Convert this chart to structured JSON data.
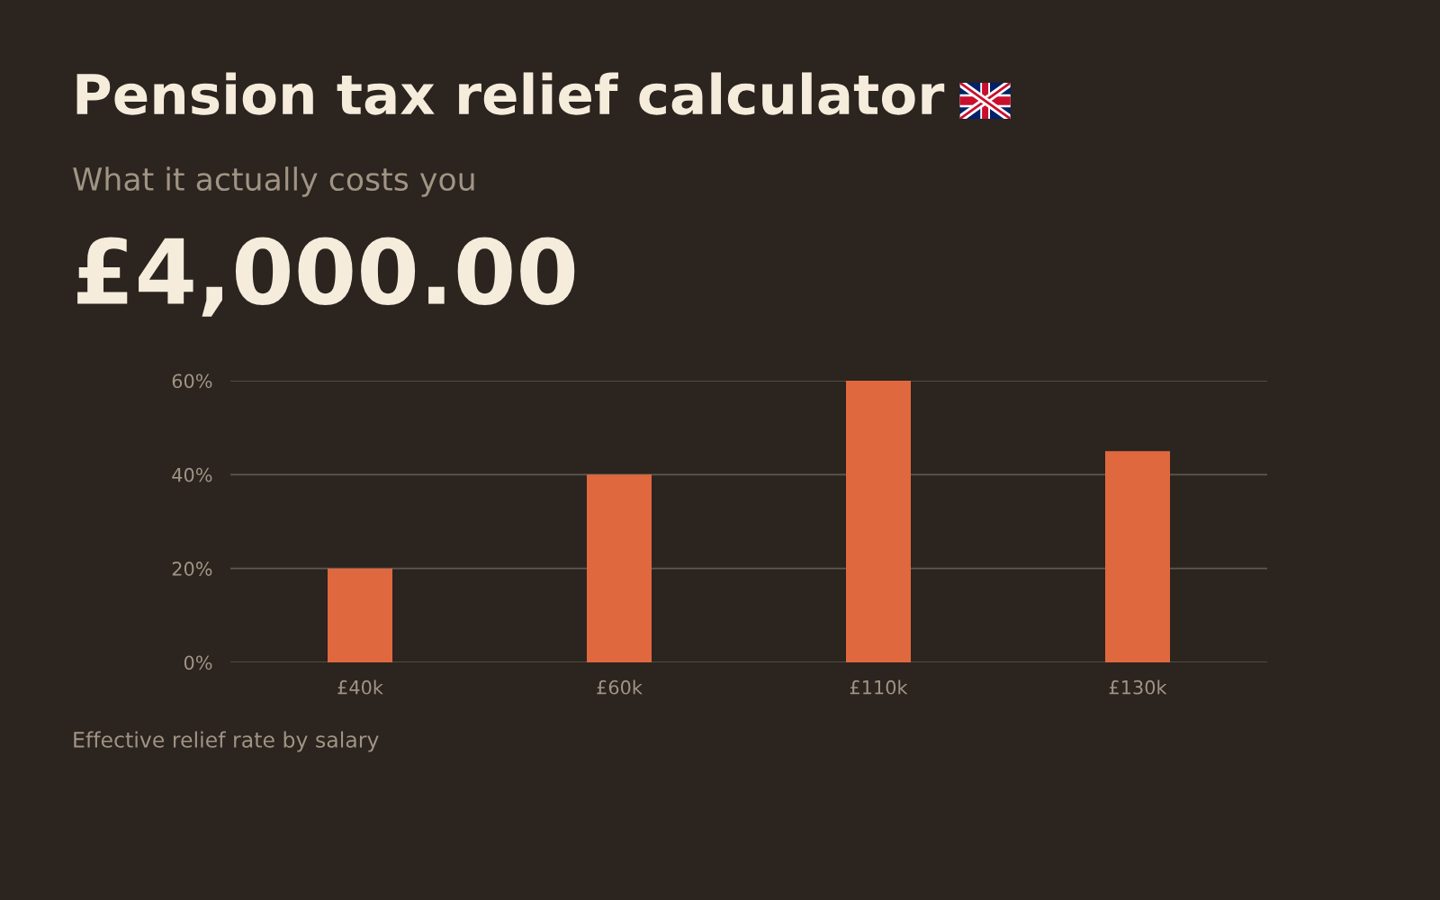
{
  "chart_data": {
    "type": "bar",
    "title": "Pension tax relief calculator",
    "subtitle": "What it actually costs you",
    "annotations": [
      "£4,000.00",
      "Effective relief rate by salary"
    ],
    "categories": [
      "£40k",
      "£60k",
      "£110k",
      "£130k"
    ],
    "values": [
      20,
      40,
      60,
      45
    ],
    "color": "#e0683e",
    "ylim": [
      0,
      60
    ],
    "yticks": [
      {
        "value": 0,
        "label": "0%"
      },
      {
        "value": 20,
        "label": "20%"
      },
      {
        "value": 40,
        "label": "40%"
      },
      {
        "value": 60,
        "label": "60%"
      }
    ],
    "grid": "y",
    "legend": false
  }
}
